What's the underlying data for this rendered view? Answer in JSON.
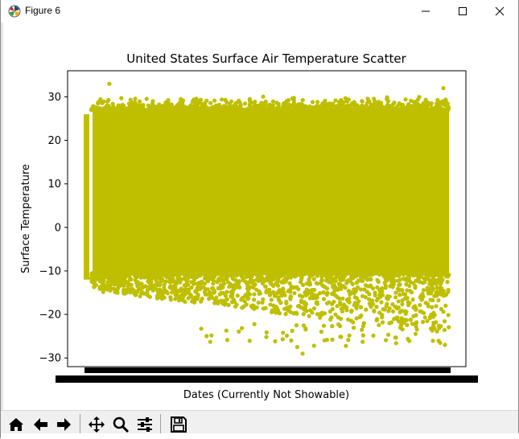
{
  "window": {
    "title": "Figure 6",
    "minimize_icon": "minimize-icon",
    "maximize_icon": "maximize-icon",
    "close_icon": "close-icon"
  },
  "toolbar": {
    "buttons": [
      {
        "name": "home-button",
        "icon": "home-icon"
      },
      {
        "name": "back-button",
        "icon": "back-arrow-icon"
      },
      {
        "name": "forward-button",
        "icon": "forward-arrow-icon"
      },
      {
        "name": "pan-button",
        "icon": "pan-move-icon"
      },
      {
        "name": "zoom-button",
        "icon": "magnifier-icon"
      },
      {
        "name": "configure-subplots-button",
        "icon": "sliders-icon"
      },
      {
        "name": "save-button",
        "icon": "floppy-disk-icon"
      }
    ]
  },
  "chart_data": {
    "type": "scatter",
    "title": "United States Surface Air Temperature Scatter",
    "xlabel": "Dates (Currently Not Showable)",
    "ylabel": "Surface Temperature",
    "ylim": [
      -32,
      36
    ],
    "yticks": [
      -30,
      -20,
      -10,
      0,
      10,
      20,
      30
    ],
    "ytick_labels": [
      "−30",
      "−20",
      "−10",
      "0",
      "10",
      "20",
      "30"
    ],
    "x_tick_labels_illegible": true,
    "grid": false,
    "legend": "none",
    "marker_color": "#bfbf00",
    "series": [
      {
        "values_summary": {
          "typical_max": 28,
          "typical_min": -12,
          "absolute_max": 33,
          "absolute_min": -29
        }
      }
    ]
  }
}
